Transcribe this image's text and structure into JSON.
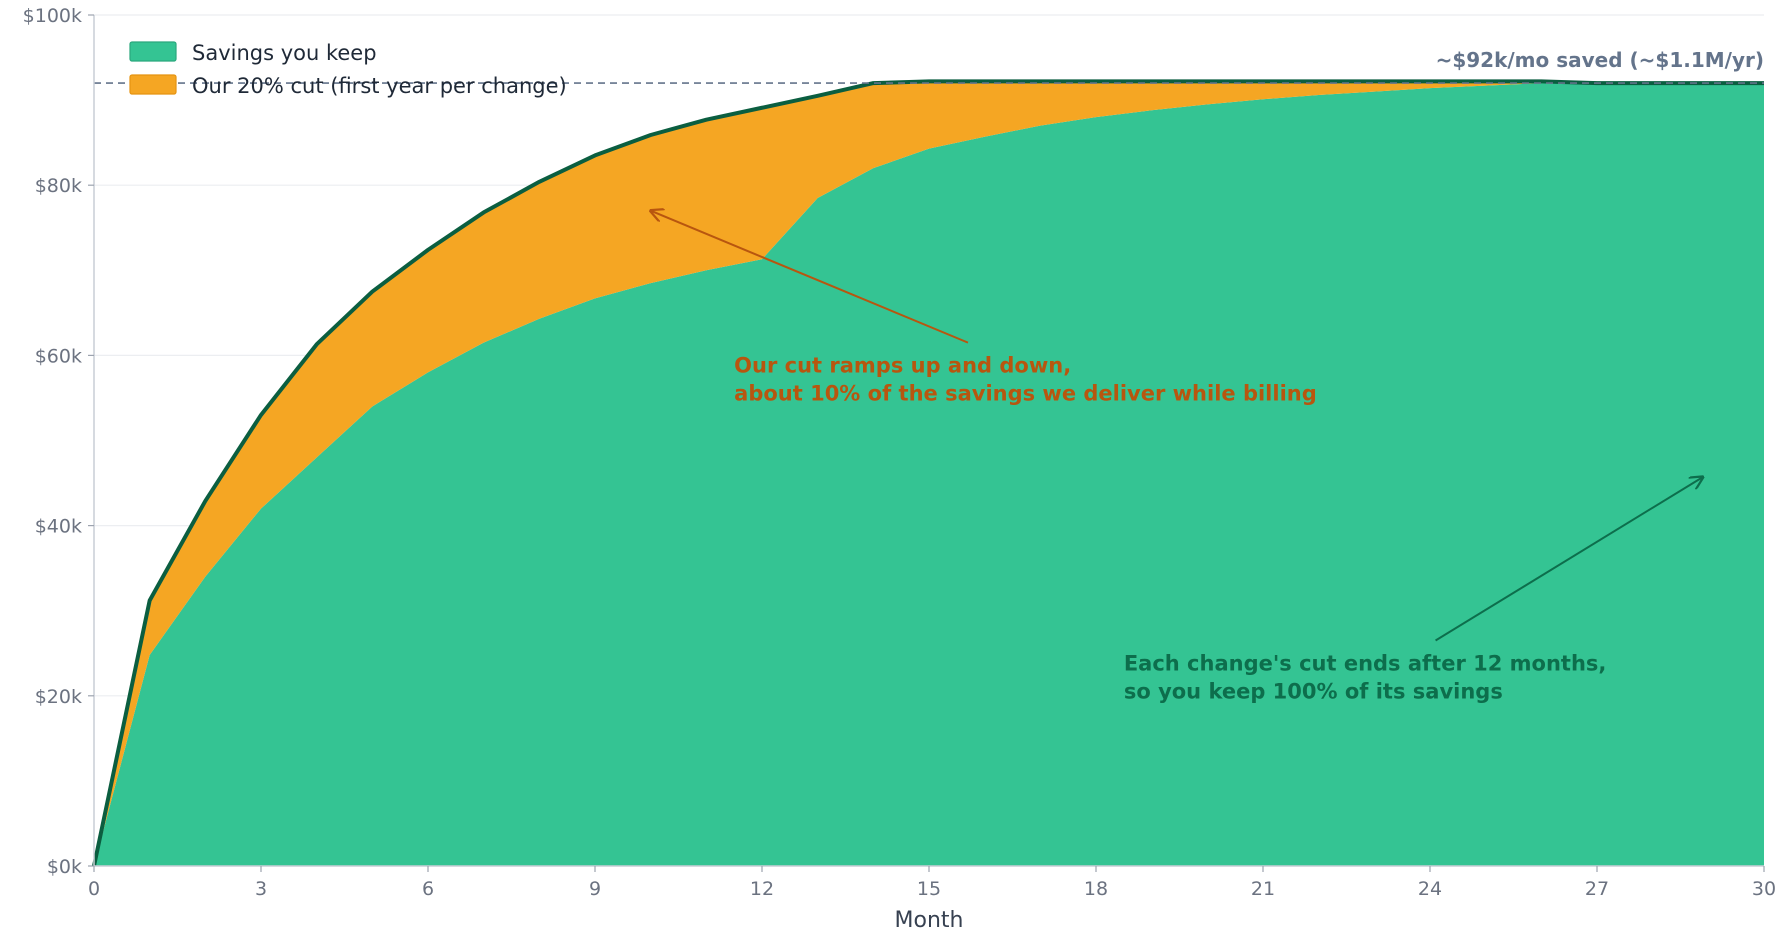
{
  "chart_data": {
    "type": "area",
    "title": "",
    "xlabel": "Month",
    "ylabel": "",
    "xlim": [
      0,
      30
    ],
    "ylim": [
      0,
      100000
    ],
    "x_ticks": [
      0,
      3,
      6,
      9,
      12,
      15,
      18,
      21,
      24,
      27,
      30
    ],
    "x_tick_labels": [
      "0",
      "3",
      "6",
      "9",
      "12",
      "15",
      "18",
      "21",
      "24",
      "27",
      "30"
    ],
    "y_ticks": [
      0,
      20000,
      40000,
      60000,
      80000,
      100000
    ],
    "y_tick_labels": [
      "$0k",
      "$20k",
      "$40k",
      "$60k",
      "$80k",
      "$100k"
    ],
    "grid": "horizontal",
    "legend_position": "top-left",
    "x": [
      0,
      1,
      2,
      3,
      4,
      5,
      6,
      7,
      8,
      9,
      10,
      11,
      12,
      13,
      14,
      15,
      16,
      17,
      18,
      19,
      20,
      21,
      22,
      23,
      24,
      25,
      26,
      27,
      28,
      29,
      30
    ],
    "series": [
      {
        "name": "Savings you keep",
        "color": "#34c493",
        "values": [
          0,
          24800,
          34000,
          42000,
          48000,
          54000,
          58000,
          61500,
          64300,
          66700,
          68500,
          70000,
          71300,
          78500,
          82000,
          84300,
          85700,
          87000,
          88000,
          88800,
          89500,
          90100,
          90600,
          91000,
          91400,
          91700,
          92000,
          92000,
          92000,
          92000,
          92000
        ]
      },
      {
        "name": "Our 20% cut (first year per change)",
        "color": "#f5a623",
        "values": [
          0,
          6400,
          8900,
          11000,
          13300,
          13500,
          14400,
          15300,
          16100,
          16800,
          17400,
          17700,
          17800,
          12000,
          10000,
          7900,
          6500,
          5200,
          4200,
          3400,
          2700,
          2100,
          1600,
          1200,
          800,
          500,
          200,
          0,
          0,
          0,
          0
        ]
      }
    ],
    "total_line_color": "#0b5e40",
    "reference_line": {
      "y": 92000,
      "label": "~$92k/mo saved (~$1.1M/yr)",
      "color": "#64748b"
    },
    "annotations": [
      {
        "lines": [
          "Our cut ramps up and down,",
          "about 10% of the savings we deliver while billing"
        ],
        "color": "#b8560f",
        "text_x": 11.5,
        "text_y": 58000,
        "arrow_from": [
          15.7,
          61500
        ],
        "arrow_to": [
          10.0,
          77000
        ]
      },
      {
        "lines": [
          "Each change's cut ends after 12 months,",
          "so you keep 100% of its savings"
        ],
        "color": "#0d6e4c",
        "text_x": 18.5,
        "text_y": 23000,
        "arrow_from": [
          24.1,
          26500
        ],
        "arrow_to": [
          28.9,
          45700
        ]
      }
    ]
  }
}
